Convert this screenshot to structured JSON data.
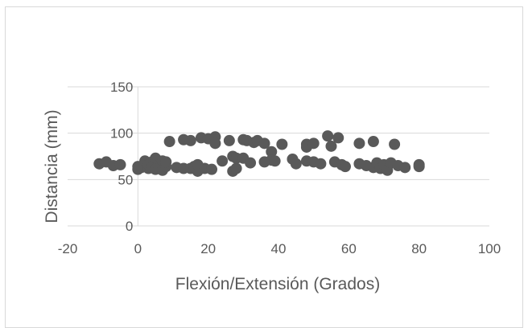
{
  "chart_data": {
    "type": "scatter",
    "xlabel": "Flexión/Extensión (Grados)",
    "ylabel": "Distancia (mm)",
    "xlim": [
      -20,
      100
    ],
    "ylim": [
      0,
      150
    ],
    "x_ticks": [
      "-20",
      "0",
      "20",
      "40",
      "60",
      "80",
      "100"
    ],
    "y_ticks": [
      "0",
      "50",
      "100",
      "150"
    ],
    "grid": "horizontal",
    "legend": "none",
    "marker_color": "#595959",
    "series": [
      {
        "points": [
          [
            -11,
            67
          ],
          [
            -9,
            69
          ],
          [
            -7,
            65
          ],
          [
            -5,
            66
          ],
          [
            0,
            61
          ],
          [
            0,
            64
          ],
          [
            1,
            63
          ],
          [
            2,
            70
          ],
          [
            3,
            62
          ],
          [
            3,
            66
          ],
          [
            4,
            69
          ],
          [
            4,
            63
          ],
          [
            5,
            73
          ],
          [
            5,
            61
          ],
          [
            6,
            66
          ],
          [
            6,
            62
          ],
          [
            7,
            70
          ],
          [
            7,
            60
          ],
          [
            8,
            64
          ],
          [
            8,
            69
          ],
          [
            9,
            91
          ],
          [
            11,
            63
          ],
          [
            13,
            93
          ],
          [
            13,
            62
          ],
          [
            15,
            92
          ],
          [
            15,
            62
          ],
          [
            16,
            64
          ],
          [
            17,
            59
          ],
          [
            17,
            66
          ],
          [
            18,
            95
          ],
          [
            19,
            62
          ],
          [
            20,
            94
          ],
          [
            21,
            61
          ],
          [
            22,
            96
          ],
          [
            22,
            89
          ],
          [
            24,
            70
          ],
          [
            26,
            92
          ],
          [
            27,
            75
          ],
          [
            27,
            59
          ],
          [
            28,
            62
          ],
          [
            28,
            73
          ],
          [
            30,
            93
          ],
          [
            30,
            73
          ],
          [
            31,
            92
          ],
          [
            32,
            68
          ],
          [
            33,
            90
          ],
          [
            34,
            92
          ],
          [
            36,
            89
          ],
          [
            36,
            69
          ],
          [
            38,
            80
          ],
          [
            38,
            71
          ],
          [
            39,
            70
          ],
          [
            41,
            88
          ],
          [
            44,
            72
          ],
          [
            45,
            67
          ],
          [
            48,
            88
          ],
          [
            48,
            85
          ],
          [
            48,
            70
          ],
          [
            50,
            89
          ],
          [
            50,
            69
          ],
          [
            52,
            67
          ],
          [
            54,
            97
          ],
          [
            55,
            86
          ],
          [
            56,
            69
          ],
          [
            57,
            95
          ],
          [
            58,
            66
          ],
          [
            59,
            64
          ],
          [
            63,
            89
          ],
          [
            63,
            67
          ],
          [
            65,
            65
          ],
          [
            67,
            91
          ],
          [
            67,
            63
          ],
          [
            68,
            68
          ],
          [
            69,
            62
          ],
          [
            70,
            66
          ],
          [
            71,
            60
          ],
          [
            72,
            68
          ],
          [
            73,
            88
          ],
          [
            74,
            65
          ],
          [
            76,
            63
          ],
          [
            80,
            66
          ],
          [
            80,
            64
          ]
        ]
      }
    ]
  }
}
